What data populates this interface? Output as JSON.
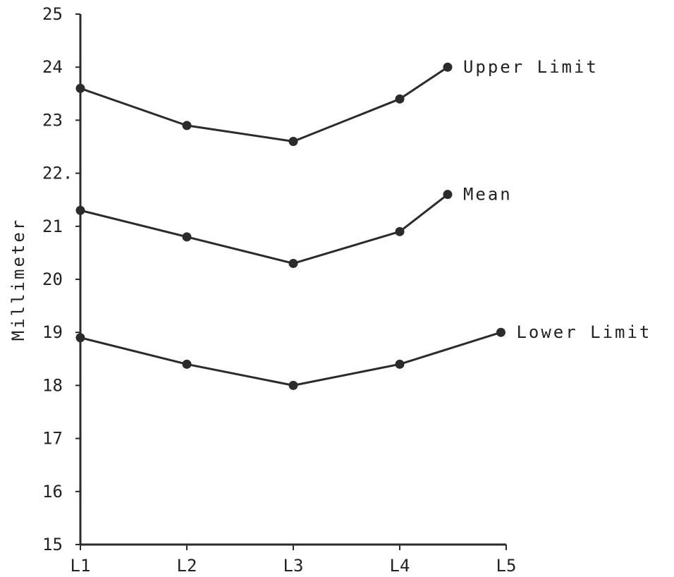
{
  "chart_data": {
    "type": "line",
    "title": "",
    "xlabel": "",
    "ylabel": "Millimeter",
    "categories": [
      "L1",
      "L2",
      "L3",
      "L4",
      "L5"
    ],
    "ylim": [
      15,
      25
    ],
    "yticks": [
      15,
      16,
      17,
      18,
      19,
      20,
      21,
      22,
      23,
      24,
      25
    ],
    "ytick_labels": [
      "15",
      "16",
      "17",
      "18",
      "19",
      "20",
      "21",
      "22.",
      "23",
      "24",
      "25"
    ],
    "grid": false,
    "legend": "none",
    "series": [
      {
        "name": "Upper Limit",
        "x": [
          1,
          2,
          3,
          4,
          4.45
        ],
        "values": [
          23.6,
          22.9,
          22.6,
          23.4,
          24.0
        ]
      },
      {
        "name": "Mean",
        "x": [
          1,
          2,
          3,
          4,
          4.45
        ],
        "values": [
          21.3,
          20.8,
          20.3,
          20.9,
          21.6
        ]
      },
      {
        "name": "Lower Limit",
        "x": [
          1,
          2,
          3,
          4,
          4.95
        ],
        "values": [
          18.9,
          18.4,
          18.0,
          18.4,
          19.0
        ]
      }
    ],
    "line_color": "#2b2b2b"
  }
}
